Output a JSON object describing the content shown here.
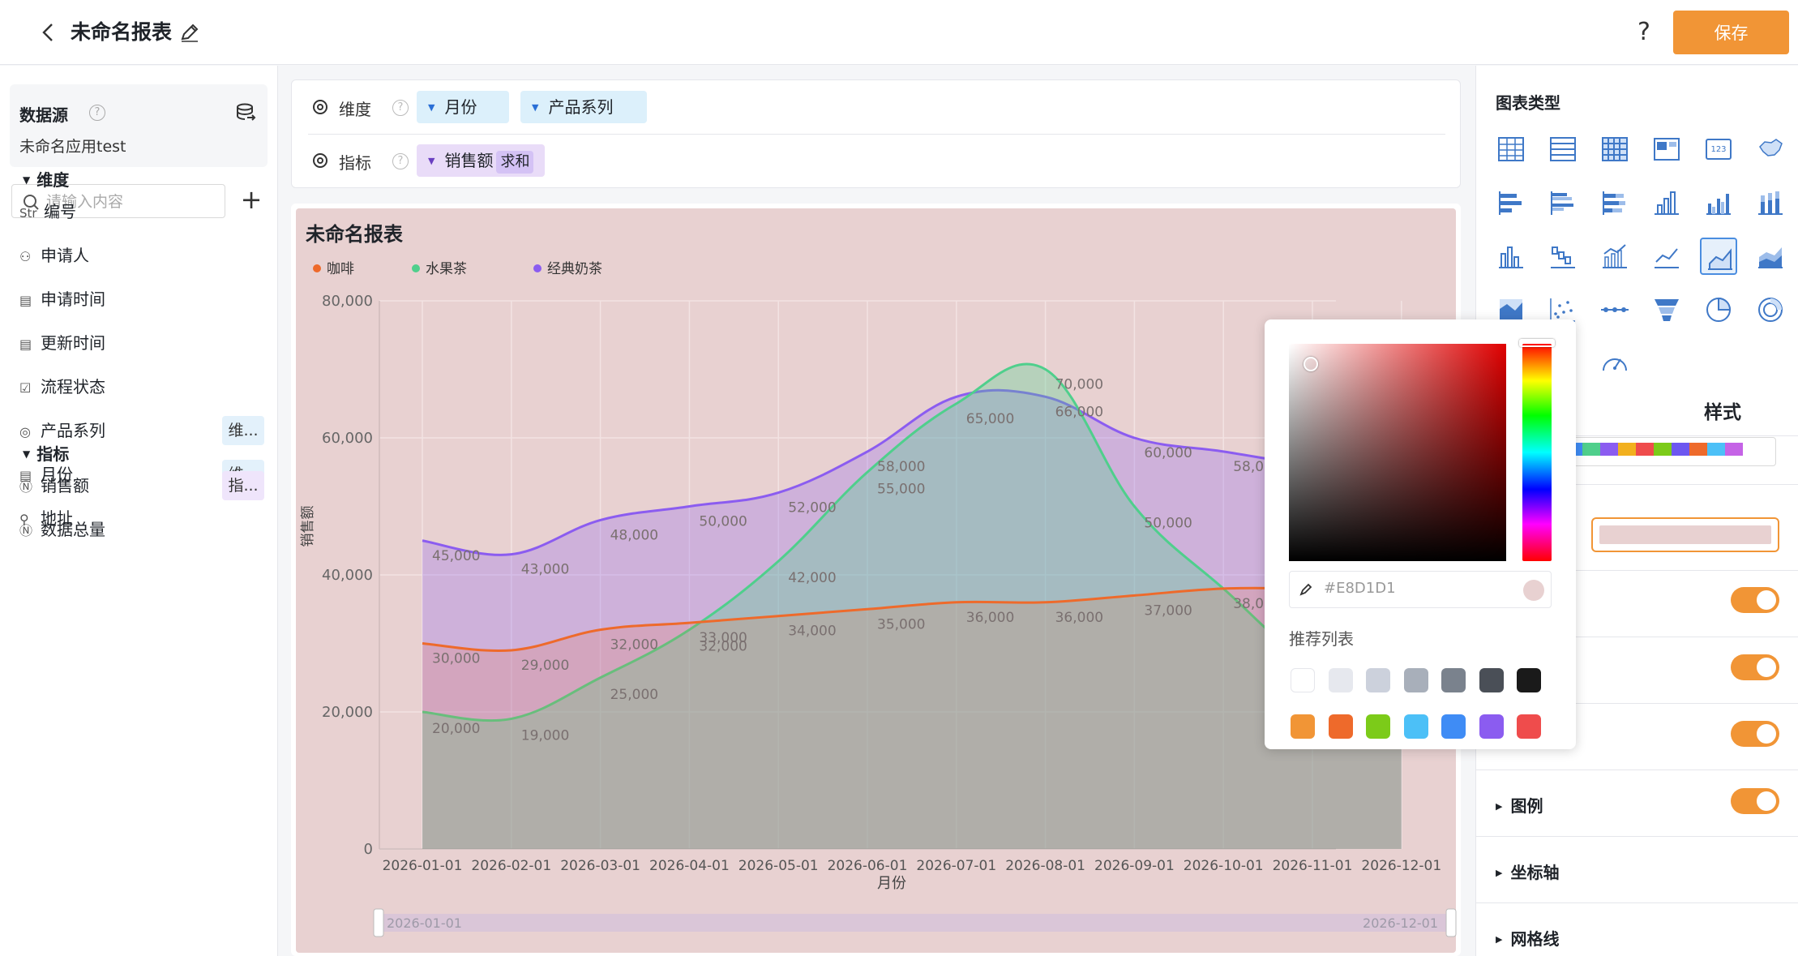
{
  "header": {
    "title": "未命名报表",
    "help": "?",
    "save_label": "保存"
  },
  "sidebar": {
    "datasource_label": "数据源",
    "datasource_name": "未命名应用test",
    "search_placeholder": "请输入内容",
    "add_label": "+",
    "dimension_section": "维度",
    "measure_section": "指标",
    "dimensions": [
      {
        "icon": "Str",
        "label": "编号",
        "badge": ""
      },
      {
        "icon": "user-icon",
        "label": "申请人",
        "badge": ""
      },
      {
        "icon": "calendar-icon",
        "label": "申请时间",
        "badge": ""
      },
      {
        "icon": "calendar-icon",
        "label": "更新时间",
        "badge": ""
      },
      {
        "icon": "checkbox-icon",
        "label": "流程状态",
        "badge": ""
      },
      {
        "icon": "target-icon",
        "label": "产品系列",
        "badge": "维..."
      },
      {
        "icon": "calendar-icon",
        "label": "月份",
        "badge": "维..."
      },
      {
        "icon": "location-icon",
        "label": "地址",
        "badge": ""
      }
    ],
    "measures": [
      {
        "icon": "number-icon",
        "label": "销售额",
        "badge": "指..."
      },
      {
        "icon": "number-icon",
        "label": "数据总量",
        "badge": ""
      }
    ]
  },
  "fields_bar": {
    "dimension_label": "维度",
    "measure_label": "指标",
    "dimension_pills": [
      "月份",
      "产品系列"
    ],
    "measure_pill": "销售额",
    "measure_agg": "求和"
  },
  "chart_data": {
    "type": "area",
    "title": "未命名报表",
    "xlabel": "月份",
    "ylabel": "销售额",
    "ylim": [
      0,
      80000
    ],
    "yticks": [
      "0",
      "20,000",
      "40,000",
      "60,000",
      "80,000"
    ],
    "categories": [
      "2026-01-01",
      "2026-02-01",
      "2026-03-01",
      "2026-04-01",
      "2026-05-01",
      "2026-06-01",
      "2026-07-01",
      "2026-08-01",
      "2026-09-01",
      "2026-10-01",
      "2026-11-01",
      "2026-12-01"
    ],
    "legend_position": "top-left",
    "grid": true,
    "series": [
      {
        "name": "咖啡",
        "color": "#ee6a2b",
        "values": [
          30000,
          29000,
          32000,
          33000,
          34000,
          35000,
          36000,
          36000,
          37000,
          38000,
          38000,
          38000
        ],
        "labels": [
          "30,000",
          "29,000",
          "32,000",
          "33,000",
          "34,000",
          "35,000",
          "36,000",
          "36,000",
          "37,000",
          "38,000",
          "",
          ""
        ]
      },
      {
        "name": "水果茶",
        "color": "#4fcf8c",
        "values": [
          20000,
          19000,
          25000,
          32000,
          42000,
          55000,
          65000,
          70000,
          50000,
          38000,
          27000,
          24000
        ],
        "labels": [
          "20,000",
          "19,000",
          "25,000",
          "32,000",
          "42,000",
          "55,000",
          "65,000",
          "70,000",
          "50,000",
          "",
          "",
          ""
        ]
      },
      {
        "name": "经典奶茶",
        "color": "#8b5cf0",
        "values": [
          45000,
          43000,
          48000,
          50000,
          52000,
          58000,
          66000,
          66000,
          60000,
          58000,
          56000,
          55000
        ],
        "labels": [
          "45,000",
          "43,000",
          "48,000",
          "50,000",
          "52,000",
          "58,000",
          "",
          "66,000",
          "60,000",
          "58,000",
          "",
          ""
        ]
      }
    ],
    "zoom_start": "2026-01-01",
    "zoom_end": "2026-12-01"
  },
  "right_panel": {
    "chart_type_label": "图表类型",
    "tab_style": "样式",
    "props": [
      "图例",
      "坐标轴",
      "网格线"
    ]
  },
  "color_picker": {
    "hex": "#E8D1D1",
    "recommend_label": "推荐列表",
    "swatches": [
      "#ffffff",
      "#e6e8ee",
      "#ccd1dc",
      "#a8afba",
      "#7a828d",
      "#4a4f57",
      "#1a1a1a",
      "#f19536",
      "#ee6a2b",
      "#7ccb19",
      "#4cc0f7",
      "#3f8cf5",
      "#8b5cf0",
      "#ef4c4c"
    ]
  },
  "colors": {
    "accent": "#f19536",
    "chart_bg": "#e8d1d1"
  }
}
